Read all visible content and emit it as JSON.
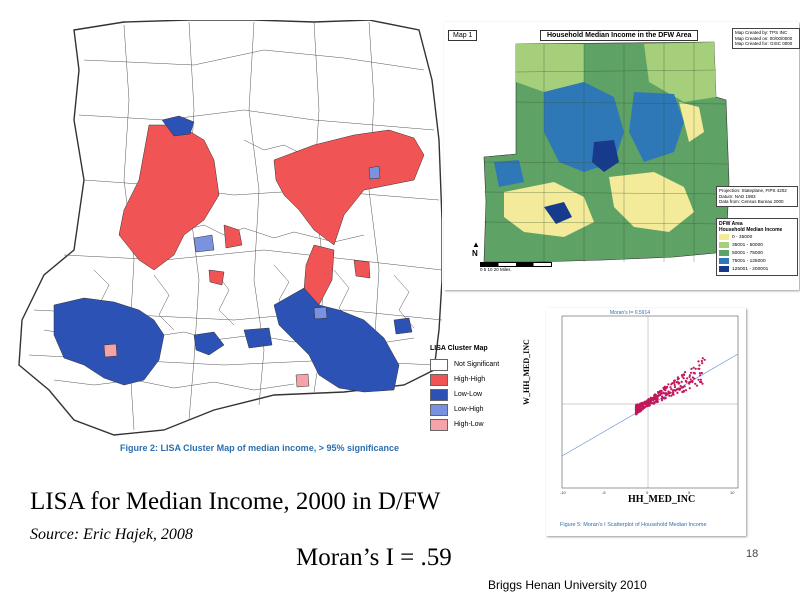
{
  "slide": {
    "title": "LISA for Median Income, 2000 in D/FW",
    "source": "Source: Eric Hajek, 2008",
    "morans": "Moran’s I =  .59",
    "number": "18",
    "footer": "Briggs  Henan University 2010"
  },
  "lisa_map": {
    "legend_title": "LISA Cluster Map",
    "legend": [
      {
        "label": "Not Significant",
        "color": "#ffffff"
      },
      {
        "label": "High-High",
        "color": "#f05454"
      },
      {
        "label": "Low-Low",
        "color": "#2d52b5"
      },
      {
        "label": "Low-High",
        "color": "#7a93e0"
      },
      {
        "label": "High-Low",
        "color": "#f5a3a8"
      }
    ],
    "caption": "Figure 2: LISA Cluster Map of median income, > 95% significance"
  },
  "map1": {
    "label": "Map 1",
    "title": "Household Median Income in the DFW Area",
    "credits": [
      "Map Created by: TPS INC",
      "Map Created on: 00/00/0000",
      "Map Created for: GISC 0000"
    ],
    "source": [
      "Projection: Stateplane, FIPS 4202",
      "Datum: NAD 1983",
      "Data from: Census Bureau 2000"
    ],
    "legend_title": "DFW Area",
    "legend_subtitle": "Household Median Income",
    "legend": [
      {
        "label": "0 - 35000",
        "color": "#f3eb9a"
      },
      {
        "label": "35001 - 50000",
        "color": "#a6cf7c"
      },
      {
        "label": "50001 - 75000",
        "color": "#5fa266"
      },
      {
        "label": "75001 - 125000",
        "color": "#2f78b8"
      },
      {
        "label": "125001 - 200001",
        "color": "#183a8c"
      }
    ],
    "north": "N",
    "scale": "0   5   10        20 Miles"
  },
  "scatter": {
    "top_text": "Moran's I= 0.5914",
    "xlabel": "HH_MED_INC",
    "ylabel": "W_HH_MED_INC",
    "caption": "Figure 5: Moran's I Scatterplot of Household Median Income"
  },
  "colors": {
    "high_high": "#f05454",
    "low_low": "#2d52b5",
    "caption_blue": "#2b6fae"
  }
}
